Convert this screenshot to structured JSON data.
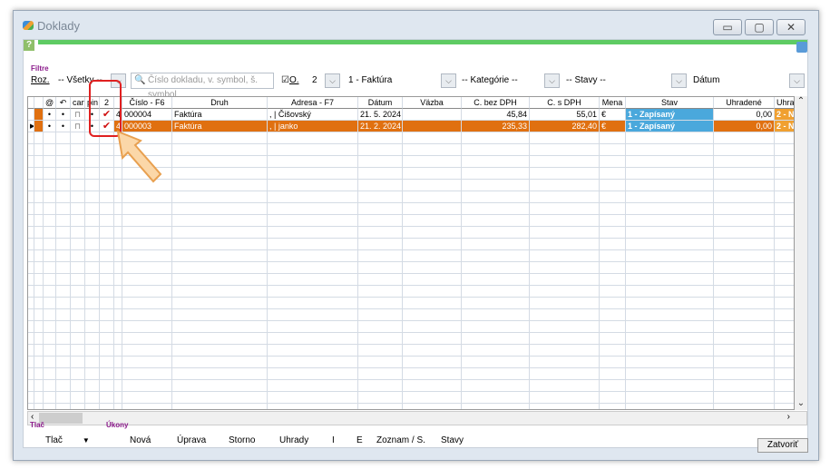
{
  "window": {
    "title": "Doklady",
    "buttons": [
      "minimize",
      "maximize",
      "close"
    ]
  },
  "filter": {
    "label": "Filtre",
    "roz_label": "Roz.",
    "scope": "-- Všetky --",
    "search_placeholder": "Číslo dokladu, v. symbol, š. symbol",
    "checkbox_label": "O.",
    "year": "2",
    "type": "1 - Faktúra",
    "category": "-- Kategórie --",
    "state": "-- Stavy --",
    "sort": "Dátum"
  },
  "columns": [
    "",
    "",
    "@",
    "↶",
    "cart",
    "pin",
    "2",
    "",
    "Číslo - F6",
    "Druh",
    "Adresa - F7",
    "Dátum",
    "Väzba",
    "C. bez DPH",
    "C. s DPH",
    "Mena",
    "Stav",
    "Uhradené",
    "Uhrad"
  ],
  "rows": [
    {
      "selected": false,
      "cells": [
        "",
        "",
        "•",
        "•",
        "cart",
        "•",
        "✔",
        "4",
        "000004",
        "Faktúra",
        ", | Čišovský",
        "21. 5. 2024",
        "",
        "45,84",
        "55,01",
        "€",
        "1 - Zapísaný",
        "0,00",
        "2 - N"
      ]
    },
    {
      "selected": true,
      "cells": [
        "▶",
        "",
        "•",
        "•",
        "cart",
        "•",
        "✔",
        "4",
        "000003",
        "Faktúra",
        ", | janko",
        "21. 2. 2024",
        "",
        "235,33",
        "282,40",
        "€",
        "1 - Zapísaný",
        "0,00",
        "2 - N"
      ]
    }
  ],
  "bottom": {
    "print_group": "Tlač",
    "print_button": "Tlač",
    "actions_group": "Úkony",
    "actions": [
      "Nová",
      "Úprava",
      "Storno",
      "Uhrady",
      "I",
      "E",
      "Zoznam / S.",
      "Stavy"
    ],
    "close_button": "Zatvoriť"
  },
  "colors": {
    "selected_row": "#e07010",
    "status": "#4aa8dc",
    "paid_status": "#f0a030",
    "progress": "#5ecb63",
    "annotation": "#e02020"
  }
}
